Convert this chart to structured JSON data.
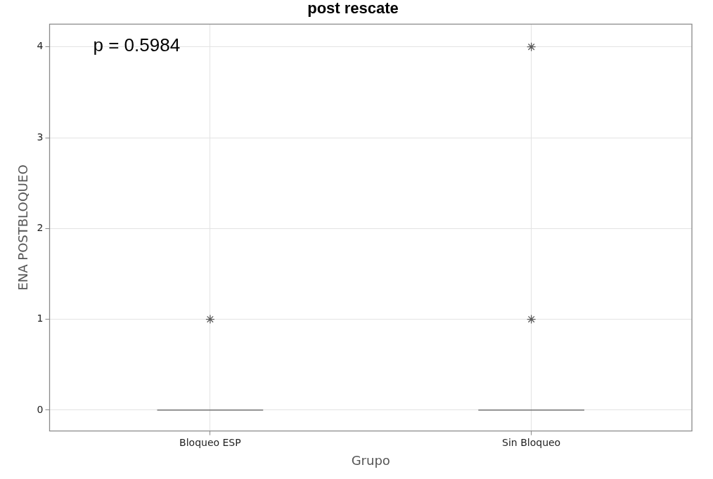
{
  "chart_data": {
    "type": "box",
    "title": "post rescate",
    "xlabel": "Grupo",
    "ylabel": "ENA POSTBLOQUEO",
    "categories": [
      "Bloqueo ESP",
      "Sin Bloqueo"
    ],
    "boxes": [
      {
        "low": 0,
        "q1": 0,
        "median": 0,
        "q3": 0,
        "high": 0,
        "outliers": [
          1
        ]
      },
      {
        "low": 0,
        "q1": 0,
        "median": 0,
        "q3": 0,
        "high": 0,
        "outliers": [
          1,
          4
        ]
      }
    ],
    "color": "#5a5a5a",
    "marker": "star",
    "ylim": [
      -0.23,
      4.25
    ],
    "yticks": [
      0,
      1,
      2,
      3,
      4
    ],
    "grid": true,
    "legend": false,
    "annotations": [
      "p = 0.5984"
    ]
  }
}
